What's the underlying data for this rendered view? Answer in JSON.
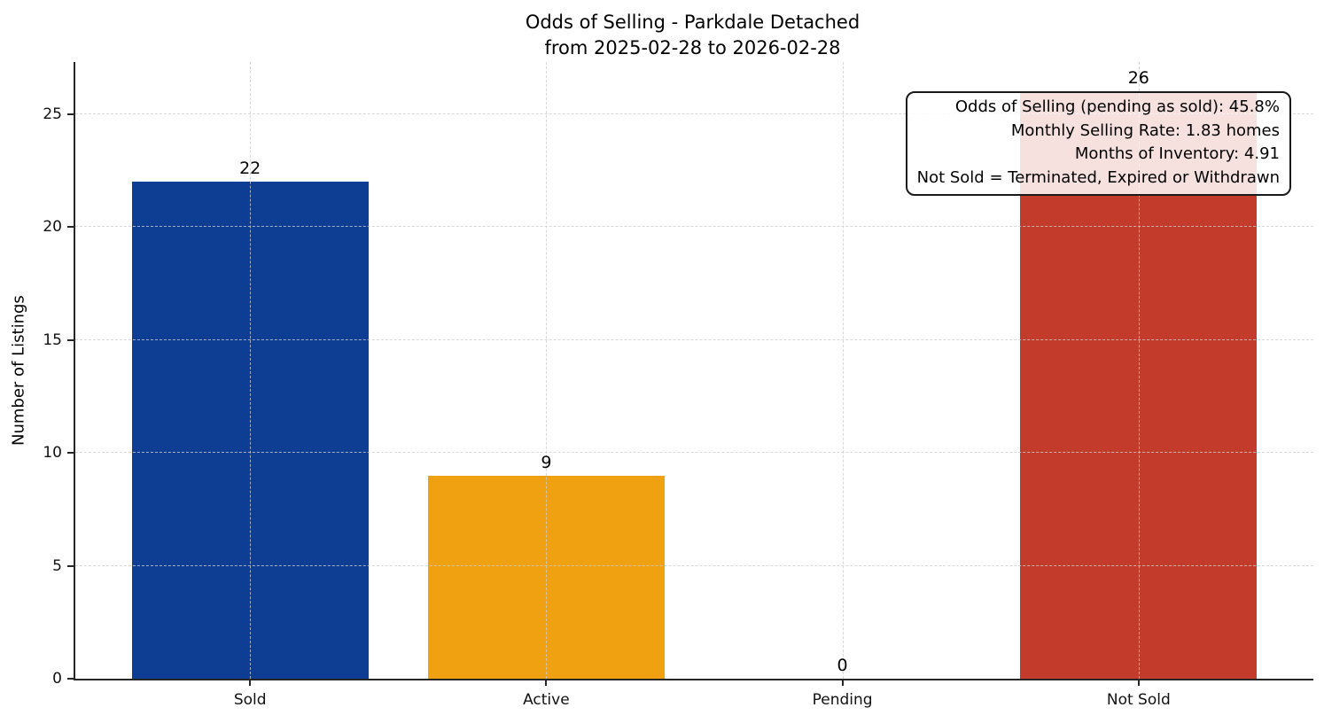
{
  "chart_data": {
    "type": "bar",
    "title": "Odds of Selling - Parkdale Detached",
    "subtitle": "from 2025-02-28 to 2026-02-28",
    "categories": [
      "Sold",
      "Active",
      "Pending",
      "Not Sold"
    ],
    "values": [
      22,
      9,
      0,
      26
    ],
    "value_labels": [
      "22",
      "9",
      "0",
      "26"
    ],
    "bar_colors": [
      "#0e3d94",
      "#f0a111",
      null,
      "#c23b2b"
    ],
    "xlabel": "",
    "ylabel": "Number of Listings",
    "yticks": [
      0,
      5,
      10,
      15,
      20,
      25
    ],
    "ylim": [
      0,
      27.3
    ],
    "grid": {
      "style": "dashed",
      "axes": "both",
      "color": "#d9d9d9"
    },
    "legend": "none",
    "background": "#ffffff",
    "annotation": {
      "position": "top-right",
      "lines": [
        "Odds of Selling (pending as sold): 45.8%",
        "Monthly Selling Rate: 1.83 homes",
        "Months of Inventory: 4.91",
        "Not Sold = Terminated, Expired or Withdrawn"
      ]
    },
    "stats": {
      "odds_of_selling_pct": 45.8,
      "monthly_selling_rate_homes": 1.83,
      "months_of_inventory": 4.91
    }
  }
}
